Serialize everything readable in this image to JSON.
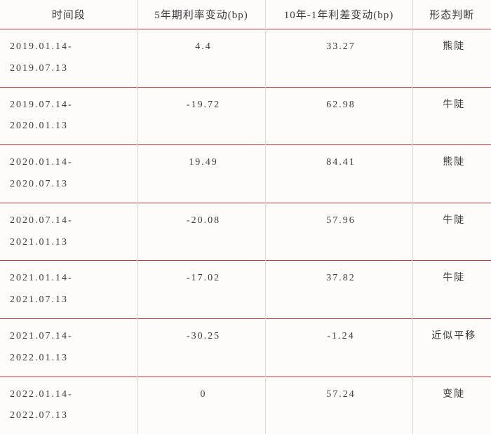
{
  "table": {
    "type": "table",
    "background_color": "#fdfcfb",
    "text_color": "#3a3a3a",
    "row_border_color": "#c43c3c",
    "col_border_color": "#d8d8d8",
    "font_family": "SimSun",
    "header_fontsize": 15,
    "body_fontsize": 14,
    "columns": [
      {
        "key": "period",
        "label": "时间段",
        "width_pct": 28,
        "align": "left"
      },
      {
        "key": "rate5y",
        "label": "5年期利率变动(bp)",
        "width_pct": 26,
        "align": "center"
      },
      {
        "key": "spread",
        "label": "10年-1年利差变动(bp)",
        "width_pct": 30,
        "align": "center"
      },
      {
        "key": "pattern",
        "label": "形态判断",
        "width_pct": 16,
        "align": "center"
      }
    ],
    "rows": [
      {
        "period_from": "2019.01.14-",
        "period_to": "2019.07.13",
        "rate5y": "4.4",
        "spread": "33.27",
        "pattern": "熊陡"
      },
      {
        "period_from": "2019.07.14-",
        "period_to": "2020.01.13",
        "rate5y": "-19.72",
        "spread": "62.98",
        "pattern": "牛陡"
      },
      {
        "period_from": "2020.01.14-",
        "period_to": "2020.07.13",
        "rate5y": "19.49",
        "spread": "84.41",
        "pattern": "熊陡"
      },
      {
        "period_from": "2020.07.14-",
        "period_to": "2021.01.13",
        "rate5y": "-20.08",
        "spread": "57.96",
        "pattern": "牛陡"
      },
      {
        "period_from": "2021.01.14-",
        "period_to": "2021.07.13",
        "rate5y": "-17.02",
        "spread": "37.82",
        "pattern": "牛陡"
      },
      {
        "period_from": "2021.07.14-",
        "period_to": "2022.01.13",
        "rate5y": "-30.25",
        "spread": "-1.24",
        "pattern": "近似平移"
      },
      {
        "period_from": "2022.01.14-",
        "period_to": "2022.07.13",
        "rate5y": "0",
        "spread": "57.24",
        "pattern": "变陡"
      }
    ]
  }
}
